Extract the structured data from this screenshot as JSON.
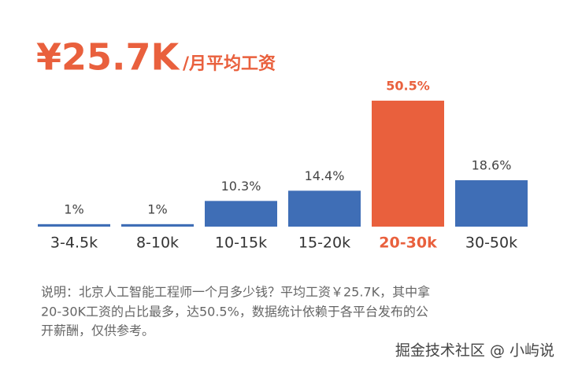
{
  "headline": {
    "amount": "¥25.7K",
    "unit": "/月平均工资"
  },
  "chart_data": {
    "type": "bar",
    "categories": [
      "3-4.5k",
      "8-10k",
      "10-15k",
      "15-20k",
      "20-30k",
      "30-50k"
    ],
    "values": [
      1,
      1,
      10.3,
      14.4,
      50.5,
      18.6
    ],
    "value_labels": [
      "1%",
      "1%",
      "10.3%",
      "14.4%",
      "50.5%",
      "18.6%"
    ],
    "color": "#3f6eb6",
    "colors": [
      "#3f6eb6",
      "#3f6eb6",
      "#3f6eb6",
      "#3f6eb6",
      "#e9603d",
      "#3f6eb6"
    ]
  },
  "note": [
    "说明：北京人工智能工程师一个月多少钱？平均工资￥25.7K，其中拿",
    "20-30K工资的占比最多，达50.5%，数据统计依赖于各平台发布的公",
    "开薪酬，仅供参考。"
  ],
  "watermark": "掘金技术社区 @ 小屿说"
}
